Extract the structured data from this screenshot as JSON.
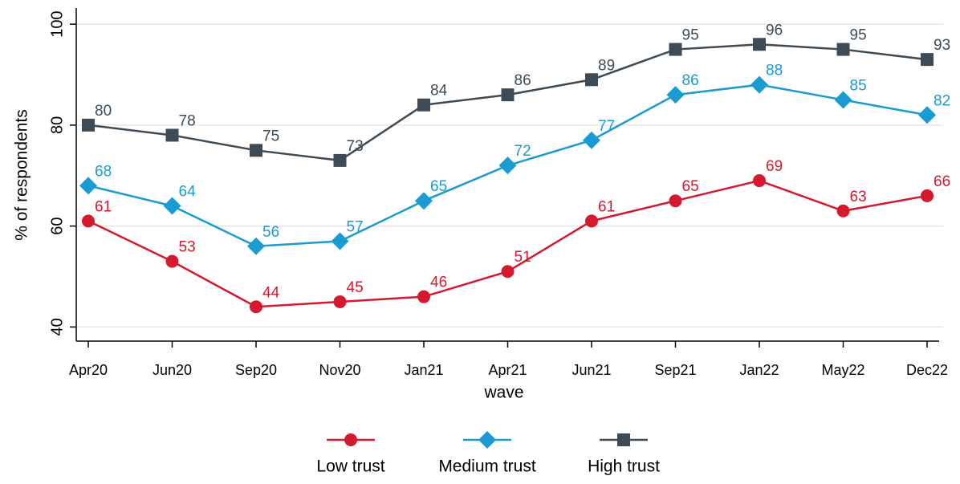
{
  "chart_data": {
    "type": "line",
    "categories": [
      "Apr20",
      "Jun20",
      "Sep20",
      "Nov20",
      "Jan21",
      "Apr21",
      "Jun21",
      "Sep21",
      "Jan22",
      "May22",
      "Dec22"
    ],
    "series": [
      {
        "name": "Low trust",
        "color": "#d6192e",
        "marker": "circle",
        "values": [
          61,
          53,
          44,
          45,
          46,
          51,
          61,
          65,
          69,
          63,
          66
        ]
      },
      {
        "name": "Medium trust",
        "color": "#1a9bd1",
        "marker": "diamond",
        "values": [
          68,
          64,
          56,
          57,
          65,
          72,
          77,
          86,
          88,
          85,
          82
        ]
      },
      {
        "name": "High trust",
        "color": "#3d4b57",
        "marker": "square",
        "values": [
          80,
          78,
          75,
          73,
          84,
          86,
          89,
          95,
          96,
          95,
          93
        ]
      }
    ],
    "xlabel": "wave",
    "ylabel": "% of respondents",
    "ylim": [
      37.2,
      103.2
    ],
    "yticks": [
      40,
      60,
      80,
      100
    ],
    "grid": true,
    "legend": "bottom"
  }
}
